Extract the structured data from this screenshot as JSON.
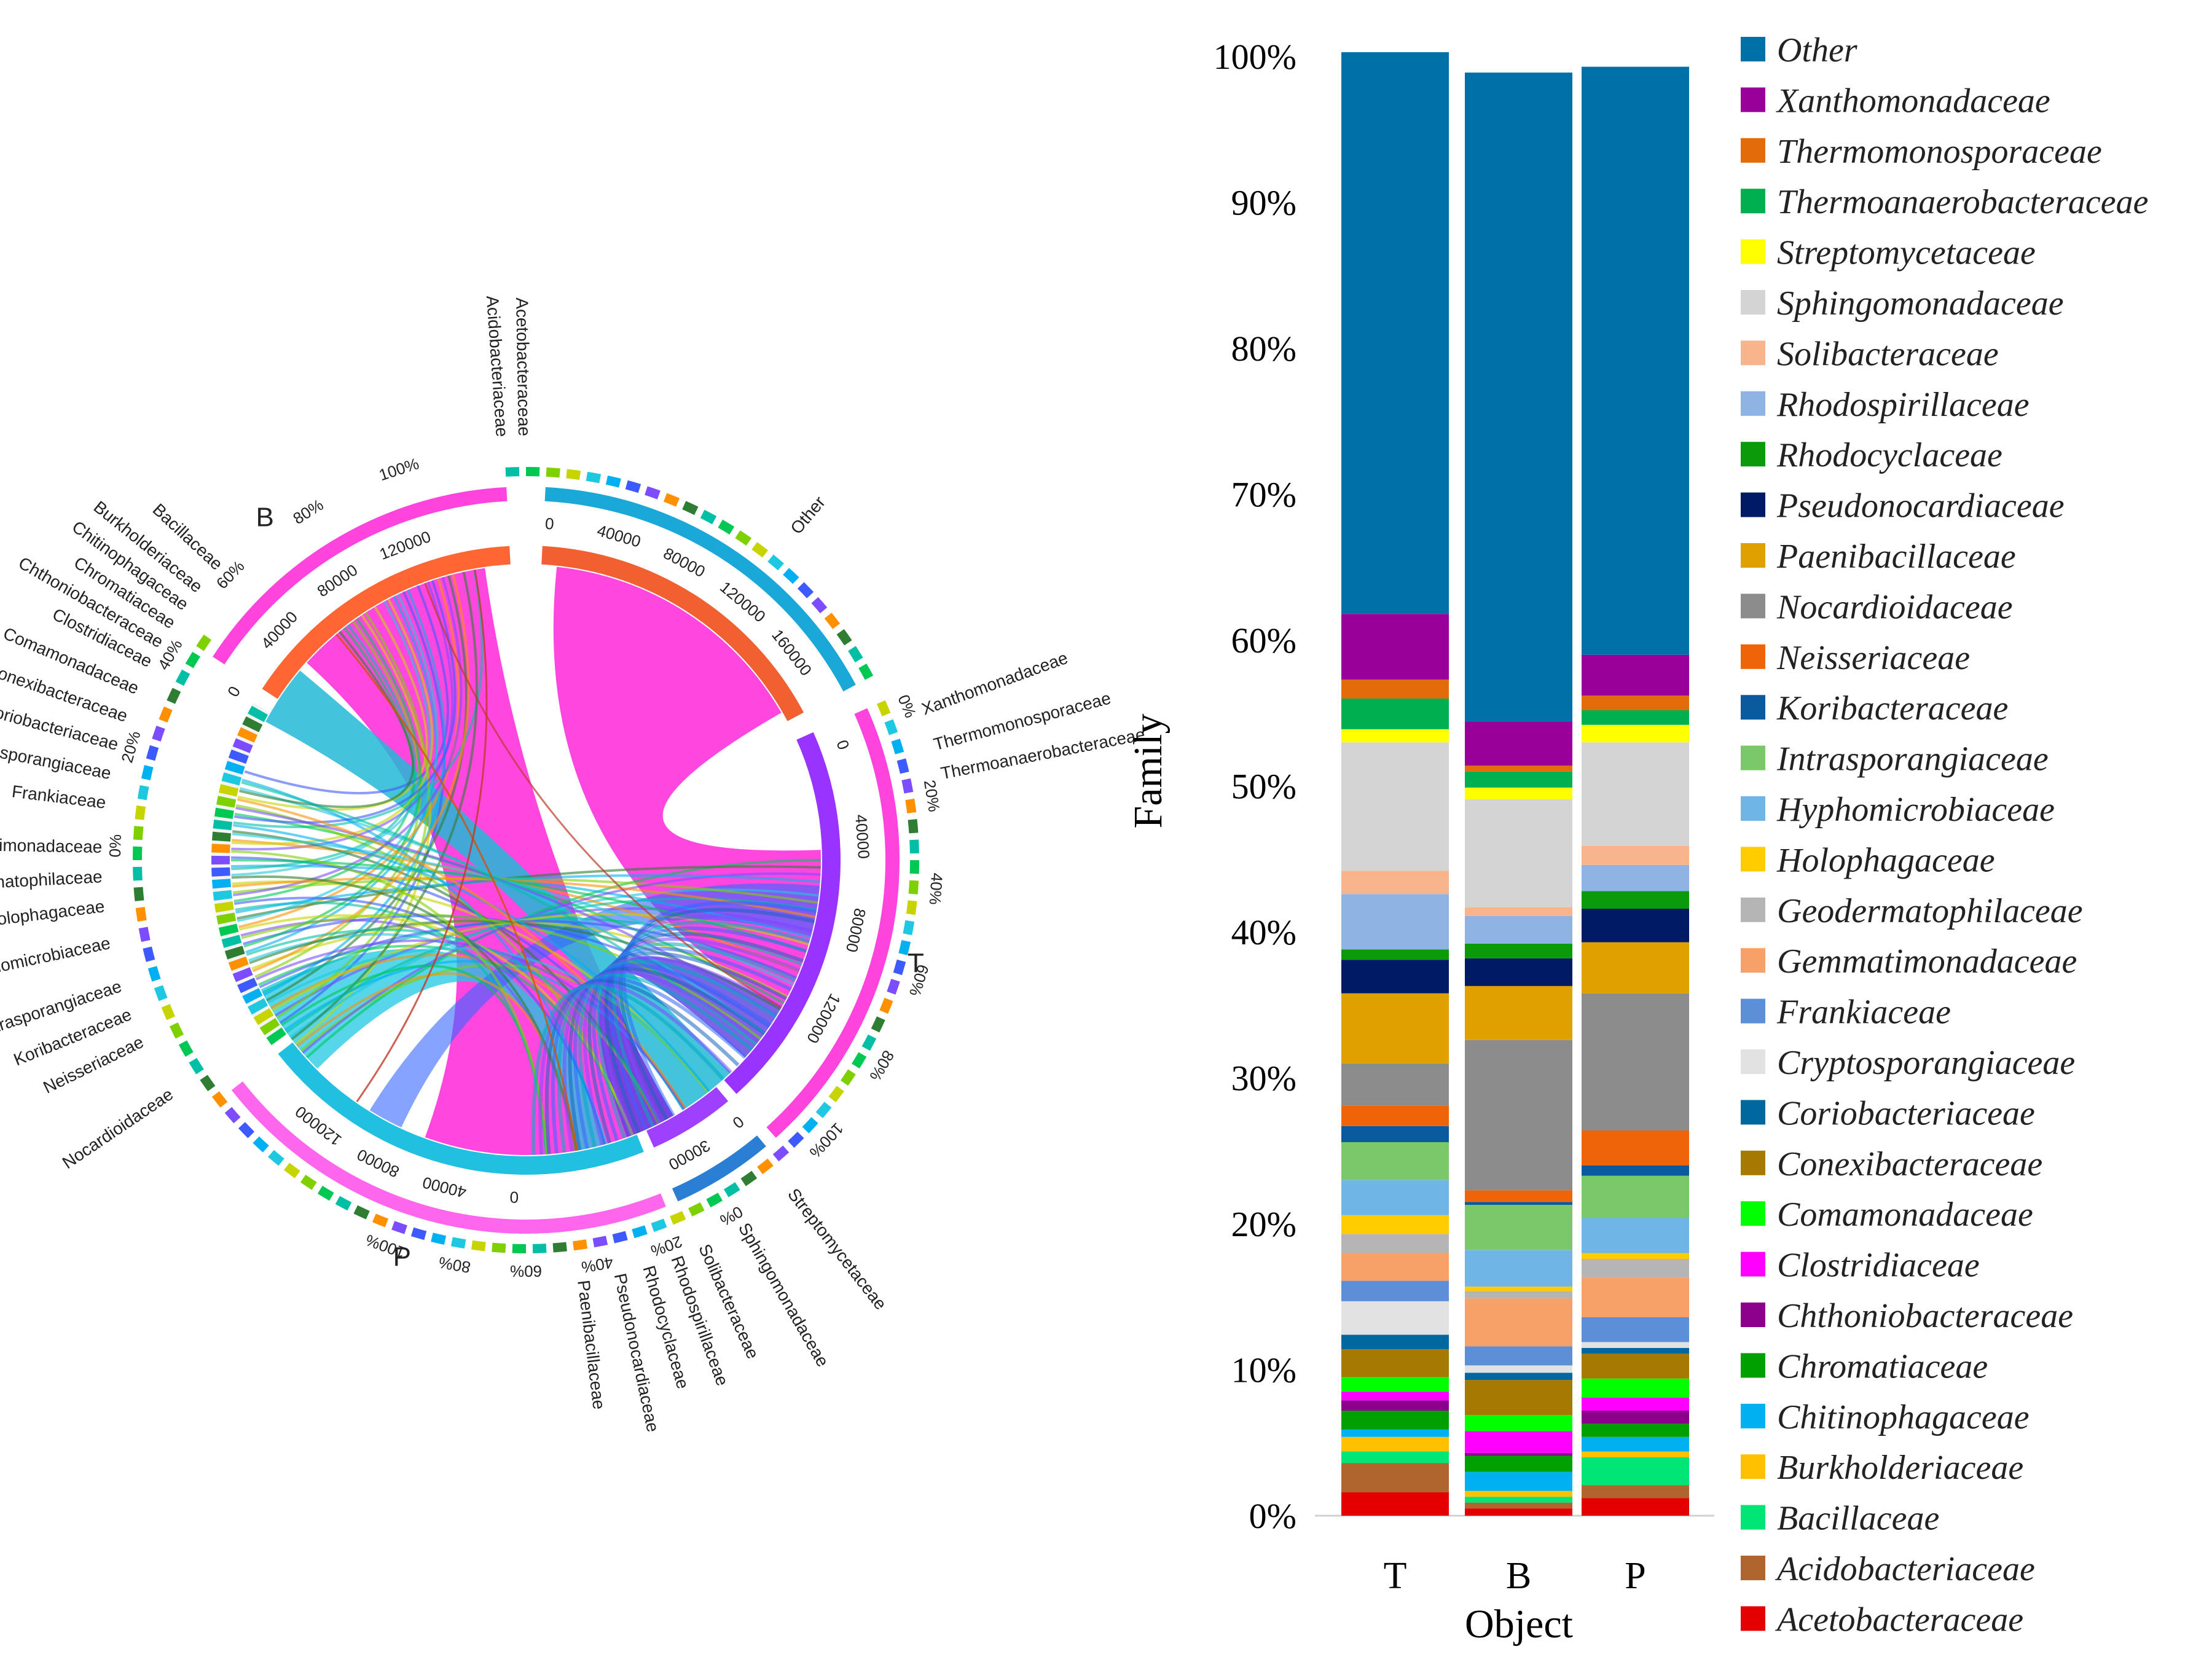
{
  "chart_data": [
    {
      "type": "chord",
      "title": "",
      "groups": [
        {
          "label": "B",
          "axis_ticks": [
            "0",
            "40000",
            "80000",
            "120000"
          ],
          "percent_ticks": [
            "0%",
            "20%",
            "40%",
            "60%",
            "80%",
            "100%"
          ]
        },
        {
          "label": "T",
          "axis_ticks": [
            "0",
            "40000",
            "80000",
            "120000"
          ],
          "percent_ticks": [
            "0%",
            "20%",
            "40%",
            "60%",
            "80%",
            "100%"
          ]
        },
        {
          "label": "P",
          "axis_ticks": [
            "0",
            "40000",
            "80000",
            "120000"
          ],
          "percent_ticks": [
            "0%",
            "20%",
            "40%",
            "60%",
            "80%",
            "100%"
          ]
        }
      ],
      "other_axis_ticks": [
        "0",
        "40000",
        "80000",
        "120000",
        "160000"
      ],
      "sphingo_axis_ticks": [
        "0",
        "30000"
      ],
      "families": [
        "Acetobacteraceae",
        "Acidobacteriaceae",
        "Other",
        "Xanthomonadaceae",
        "Thermomonosporaceae",
        "Thermoanaerobacteraceae",
        "Streptomycetaceae",
        "Sphingomonadaceae",
        "Solibacteraceae",
        "Rhodospirillaceae",
        "Rhodocyclaceae",
        "Pseudonocardiaceae",
        "Paenibacillaceae",
        "Nocardioidaceae",
        "Neisseriaceae",
        "Koribacteraceae",
        "Intrasporangiaceae",
        "Hyphomicrobiaceae",
        "Holophagaceae",
        "Geodermatophilaceae",
        "Gemmatimonadaceae",
        "Frankiaceae",
        "Cryptosporangiaceae",
        "Coriobacteriaceae",
        "Conexibacteraceae",
        "Comamonadaceae",
        "Clostridiaceae",
        "Chthoniobacteraceae",
        "Chromatiaceae",
        "Chitinophagaceae",
        "Burkholderiaceae",
        "Bacillaceae"
      ]
    },
    {
      "type": "stacked-bar",
      "title": "",
      "xlabel": "Object",
      "ylabel": "Family",
      "categories": [
        "T",
        "B",
        "P"
      ],
      "yticks": [
        "0%",
        "10%",
        "20%",
        "30%",
        "40%",
        "50%",
        "60%",
        "70%",
        "80%",
        "90%",
        "100%"
      ],
      "ylim": [
        0,
        100
      ],
      "legend_position": "right",
      "series": [
        {
          "name": "Acetobacteraceae",
          "color": "#e50000",
          "values": [
            1.6,
            0.5,
            1.2
          ]
        },
        {
          "name": "Acidobacteriaceae",
          "color": "#b0652e",
          "values": [
            2.0,
            0.4,
            0.9
          ]
        },
        {
          "name": "Bacillaceae",
          "color": "#00e676",
          "values": [
            0.8,
            0.4,
            1.9
          ]
        },
        {
          "name": "Burkholderiaceae",
          "color": "#ffc000",
          "values": [
            1.0,
            0.4,
            0.4
          ]
        },
        {
          "name": "Chitinophagaceae",
          "color": "#00b0f0",
          "values": [
            0.5,
            1.3,
            1.0
          ]
        },
        {
          "name": "Chromatiaceae",
          "color": "#00a000",
          "values": [
            1.3,
            1.1,
            0.9
          ]
        },
        {
          "name": "Chthoniobacteraceae",
          "color": "#8b008b",
          "values": [
            0.7,
            0.2,
            0.9
          ]
        },
        {
          "name": "Clostridiaceae",
          "color": "#ff00ff",
          "values": [
            0.6,
            1.5,
            0.9
          ]
        },
        {
          "name": "Comamonadaceae",
          "color": "#00ff00",
          "values": [
            1.0,
            1.1,
            1.3
          ]
        },
        {
          "name": "Conexibacteraceae",
          "color": "#a67a00",
          "values": [
            1.9,
            2.4,
            1.7
          ]
        },
        {
          "name": "Coriobacteriaceae",
          "color": "#00689e",
          "values": [
            1.0,
            0.5,
            0.4
          ]
        },
        {
          "name": "Cryptosporangiaceae",
          "color": "#e2e2e2",
          "values": [
            2.3,
            0.5,
            0.4
          ]
        },
        {
          "name": "Frankiaceae",
          "color": "#5b8fd8",
          "values": [
            1.4,
            1.3,
            1.7
          ]
        },
        {
          "name": "Gemmatimonadaceae",
          "color": "#f7a068",
          "values": [
            1.9,
            3.3,
            2.7
          ]
        },
        {
          "name": "Geodermatophilaceae",
          "color": "#b5b5b5",
          "values": [
            1.3,
            0.5,
            1.3
          ]
        },
        {
          "name": "Holophagaceae",
          "color": "#ffcc00",
          "values": [
            1.3,
            0.3,
            0.4
          ]
        },
        {
          "name": "Hyphomicrobiaceae",
          "color": "#6fb5e6",
          "values": [
            2.4,
            2.5,
            2.4
          ]
        },
        {
          "name": "Intrasporangiaceae",
          "color": "#79c96a",
          "values": [
            2.6,
            3.1,
            2.9
          ]
        },
        {
          "name": "Koribacteraceae",
          "color": "#0a5aa0",
          "values": [
            1.1,
            0.2,
            0.7
          ]
        },
        {
          "name": "Neisseriaceae",
          "color": "#ef6408",
          "values": [
            1.4,
            0.8,
            2.4
          ]
        },
        {
          "name": "Nocardioidaceae",
          "color": "#8c8c8c",
          "values": [
            2.9,
            10.3,
            9.4
          ]
        },
        {
          "name": "Paenibacillaceae",
          "color": "#e0a000",
          "values": [
            4.8,
            3.7,
            3.5
          ]
        },
        {
          "name": "Pseudonocardiaceae",
          "color": "#001a66",
          "values": [
            2.3,
            1.9,
            2.3
          ]
        },
        {
          "name": "Rhodocyclaceae",
          "color": "#0a9a0a",
          "values": [
            0.7,
            1.0,
            1.2
          ]
        },
        {
          "name": "Rhodospirillaceae",
          "color": "#8fb4e3",
          "values": [
            3.8,
            1.9,
            1.8
          ]
        },
        {
          "name": "Solibacteraceae",
          "color": "#f8b48a",
          "values": [
            1.6,
            0.6,
            1.3
          ]
        },
        {
          "name": "Sphingomonadaceae",
          "color": "#d4d4d4",
          "values": [
            8.8,
            7.4,
            7.1
          ]
        },
        {
          "name": "Streptomycetaceae",
          "color": "#ffff00",
          "values": [
            0.9,
            0.8,
            1.2
          ]
        },
        {
          "name": "Thermoanaerobacteraceae",
          "color": "#00b050",
          "values": [
            2.1,
            1.1,
            1.0
          ]
        },
        {
          "name": "Thermomonosporaceae",
          "color": "#e36c0a",
          "values": [
            1.3,
            0.4,
            1.0
          ]
        },
        {
          "name": "Xanthomonadaceae",
          "color": "#990099",
          "values": [
            4.5,
            3.0,
            2.8
          ]
        },
        {
          "name": "Other",
          "color": "#0070a8",
          "values": [
            38.5,
            44.5,
            40.3
          ]
        }
      ]
    }
  ]
}
